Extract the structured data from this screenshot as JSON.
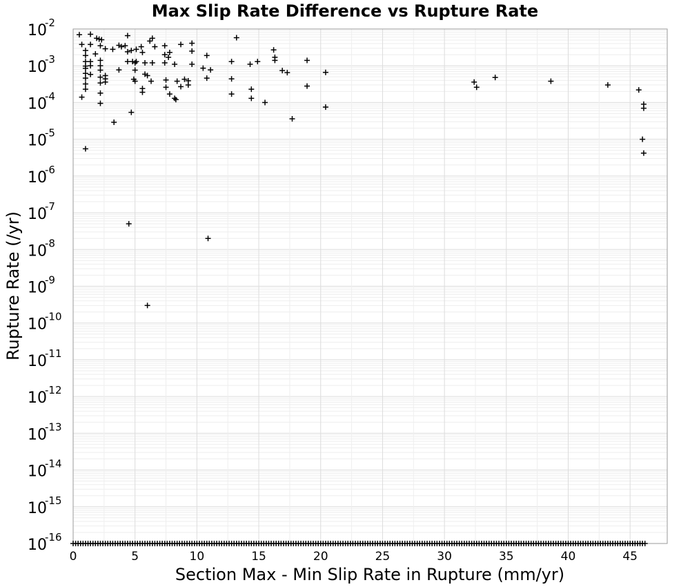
{
  "chart_data": {
    "type": "scatter",
    "title": "Max Slip Rate Difference vs Rupture Rate",
    "xlabel": "Section Max - Min Slip Rate in Rupture (mm/yr)",
    "ylabel": "Rupture Rate (/yr)",
    "xlim": [
      0,
      48
    ],
    "ylim": [
      1e-16,
      0.01
    ],
    "yscale": "log",
    "grid": true,
    "x_ticks": [
      "0",
      "5",
      "10",
      "15",
      "20",
      "25",
      "30",
      "35",
      "40",
      "45"
    ],
    "y_ticks": [
      {
        "base": "10",
        "exp": "-2"
      },
      {
        "base": "10",
        "exp": "-3"
      },
      {
        "base": "10",
        "exp": "-4"
      },
      {
        "base": "10",
        "exp": "-5"
      },
      {
        "base": "10",
        "exp": "-6"
      },
      {
        "base": "10",
        "exp": "-7"
      },
      {
        "base": "10",
        "exp": "-8"
      },
      {
        "base": "10",
        "exp": "-9"
      },
      {
        "base": "10",
        "exp": "-10"
      },
      {
        "base": "10",
        "exp": "-11"
      },
      {
        "base": "10",
        "exp": "-12"
      },
      {
        "base": "10",
        "exp": "-13"
      },
      {
        "base": "10",
        "exp": "-14"
      },
      {
        "base": "10",
        "exp": "-15"
      },
      {
        "base": "10",
        "exp": "-16"
      }
    ],
    "marker": "plus",
    "marker_color": "#000000",
    "points": [
      [
        0.5,
        0.007
      ],
      [
        0.7,
        0.0038
      ],
      [
        0.7,
        0.00014
      ],
      [
        1.0,
        5.5e-06
      ],
      [
        1.0,
        0.0026
      ],
      [
        1.0,
        0.0019
      ],
      [
        1.0,
        0.0013
      ],
      [
        1.0,
        0.00098
      ],
      [
        1.0,
        0.00085
      ],
      [
        1.0,
        0.00062
      ],
      [
        1.0,
        0.00046
      ],
      [
        1.0,
        0.00032
      ],
      [
        1.0,
        0.00023
      ],
      [
        1.4,
        0.0072
      ],
      [
        1.4,
        0.0038
      ],
      [
        1.4,
        0.0013
      ],
      [
        1.4,
        0.001
      ],
      [
        1.4,
        0.00058
      ],
      [
        1.8,
        0.0021
      ],
      [
        1.9,
        0.0056
      ],
      [
        2.1,
        0.0053
      ],
      [
        2.2,
        0.0035
      ],
      [
        2.2,
        0.0014
      ],
      [
        2.2,
        0.001
      ],
      [
        2.2,
        0.00076
      ],
      [
        2.2,
        0.00049
      ],
      [
        2.2,
        0.00034
      ],
      [
        2.2,
        0.00018
      ],
      [
        2.2,
        9.5e-05
      ],
      [
        2.3,
        0.0051
      ],
      [
        2.6,
        0.0029
      ],
      [
        2.6,
        0.00054
      ],
      [
        2.6,
        0.00044
      ],
      [
        2.6,
        0.00036
      ],
      [
        3.2,
        0.0028
      ],
      [
        3.3,
        2.9e-05
      ],
      [
        3.7,
        0.0036
      ],
      [
        3.7,
        0.00077
      ],
      [
        3.9,
        0.0033
      ],
      [
        4.2,
        0.0035
      ],
      [
        4.4,
        0.0066
      ],
      [
        4.4,
        0.0024
      ],
      [
        4.4,
        0.0013
      ],
      [
        4.5,
        5e-08
      ],
      [
        4.7,
        0.0026
      ],
      [
        4.7,
        5.4e-05
      ],
      [
        4.8,
        0.0013
      ],
      [
        4.9,
        0.00043
      ],
      [
        5.0,
        0.0012
      ],
      [
        5.0,
        0.00076
      ],
      [
        5.0,
        0.00038
      ],
      [
        5.1,
        0.0028
      ],
      [
        5.1,
        0.0013
      ],
      [
        5.5,
        0.0033
      ],
      [
        5.6,
        0.0023
      ],
      [
        5.6,
        0.00024
      ],
      [
        5.6,
        0.00019
      ],
      [
        5.8,
        0.0012
      ],
      [
        5.8,
        0.00059
      ],
      [
        6.0,
        3e-10
      ],
      [
        6.0,
        0.00054
      ],
      [
        6.2,
        0.0047
      ],
      [
        6.3,
        0.00038
      ],
      [
        6.4,
        0.0056
      ],
      [
        6.4,
        0.0012
      ],
      [
        6.6,
        0.0033
      ],
      [
        7.4,
        0.0035
      ],
      [
        7.4,
        0.002
      ],
      [
        7.4,
        0.0012
      ],
      [
        7.5,
        0.00041
      ],
      [
        7.5,
        0.00026
      ],
      [
        7.7,
        0.0017
      ],
      [
        7.8,
        0.0023
      ],
      [
        7.8,
        0.00017
      ],
      [
        8.2,
        0.0011
      ],
      [
        8.2,
        0.00013
      ],
      [
        8.3,
        0.00012
      ],
      [
        8.4,
        0.00038
      ],
      [
        8.7,
        0.0038
      ],
      [
        8.7,
        0.00027
      ],
      [
        9.0,
        0.00043
      ],
      [
        9.3,
        0.00039
      ],
      [
        9.3,
        0.0003
      ],
      [
        9.6,
        0.0041
      ],
      [
        9.6,
        0.0025
      ],
      [
        9.6,
        0.0011
      ],
      [
        10.5,
        0.00086
      ],
      [
        10.8,
        0.0019
      ],
      [
        10.8,
        0.00046
      ],
      [
        10.9,
        2e-08
      ],
      [
        11.1,
        0.00077
      ],
      [
        12.8,
        0.0013
      ],
      [
        12.8,
        0.00044
      ],
      [
        12.8,
        0.00017
      ],
      [
        13.2,
        0.0058
      ],
      [
        14.3,
        0.0011
      ],
      [
        14.4,
        0.00023
      ],
      [
        14.4,
        0.00013
      ],
      [
        14.9,
        0.0013
      ],
      [
        15.5,
        0.0001
      ],
      [
        16.2,
        0.0027
      ],
      [
        16.3,
        0.0017
      ],
      [
        16.3,
        0.0014
      ],
      [
        16.9,
        0.00074
      ],
      [
        17.3,
        0.00065
      ],
      [
        17.7,
        3.6e-05
      ],
      [
        18.9,
        0.0014
      ],
      [
        18.9,
        0.00028
      ],
      [
        20.4,
        0.00066
      ],
      [
        20.4,
        7.5e-05
      ],
      [
        32.4,
        0.00036
      ],
      [
        32.6,
        0.00026
      ],
      [
        34.1,
        0.00048
      ],
      [
        38.6,
        0.00038
      ],
      [
        43.2,
        0.0003
      ],
      [
        45.7,
        0.00022
      ],
      [
        46.1,
        9e-05
      ],
      [
        46.1,
        7e-05
      ],
      [
        46.0,
        1e-05
      ],
      [
        46.1,
        4.2e-06
      ]
    ],
    "floor_band": {
      "y": 1e-16,
      "x_start": 0,
      "x_end": 46.2,
      "step": 0.2
    }
  }
}
